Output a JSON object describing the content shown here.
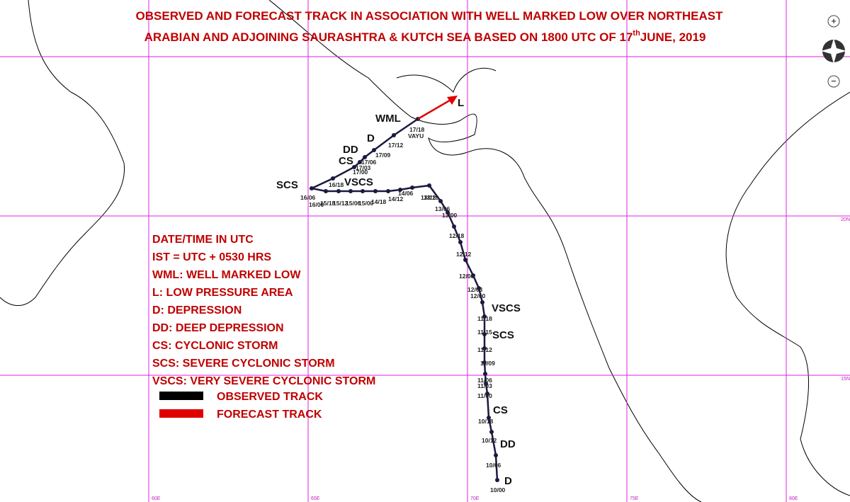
{
  "header": {
    "line1": "OBSERVED AND FORECAST TRACK IN ASSOCIATION WITH WELL MARKED LOW OVER NORTHEAST",
    "line2": "ARABIAN AND ADJOINING SAURASHTRA & KUTCH SEA BASED ON 1800 UTC OF 17",
    "sup": "th",
    "line2_end": "JUNE, 2019"
  },
  "legend": {
    "lines": [
      "DATE/TIME IN UTC",
      "IST = UTC + 0530 HRS",
      "WML: WELL MARKED LOW",
      "L: LOW PRESSURE AREA",
      "D: DEPRESSION",
      "DD: DEEP DEPRESSION",
      "CS: CYCLONIC STORM",
      "SCS: SEVERE CYCLONIC STORM",
      "VSCS: VERY SEVERE CYCLONIC STORM"
    ],
    "keys": [
      "OBSERVED TRACK",
      "FORECAST TRACK"
    ]
  },
  "grid": {
    "lon": [
      "60E",
      "65E",
      "70E",
      "75E",
      "80E"
    ],
    "lat": [
      "20N",
      "15N"
    ]
  },
  "stages": [
    "D",
    "DD",
    "CS",
    "SCS",
    "VSCS",
    "VSCS",
    "SCS",
    "CS",
    "DD",
    "D",
    "WML",
    "L"
  ],
  "times": [
    "10/00",
    "10/06",
    "10/12",
    "10/18",
    "11/00",
    "11/03",
    "11/06",
    "11/09",
    "11/12",
    "11/15",
    "11/18",
    "12/00",
    "12/03",
    "12/06",
    "12/12",
    "12/18",
    "13/00",
    "13/06",
    "13/12",
    "13/18",
    "14/06",
    "14/12",
    "14/18",
    "15/00",
    "15/06",
    "15/12",
    "15/18",
    "16/00",
    "16/06",
    "16/18",
    "17/00",
    "17/03",
    "17/06",
    "17/09",
    "17/12",
    "17/18",
    "VAYU"
  ],
  "controls": {
    "zoom_in": "+",
    "zoom_out": "−"
  }
}
